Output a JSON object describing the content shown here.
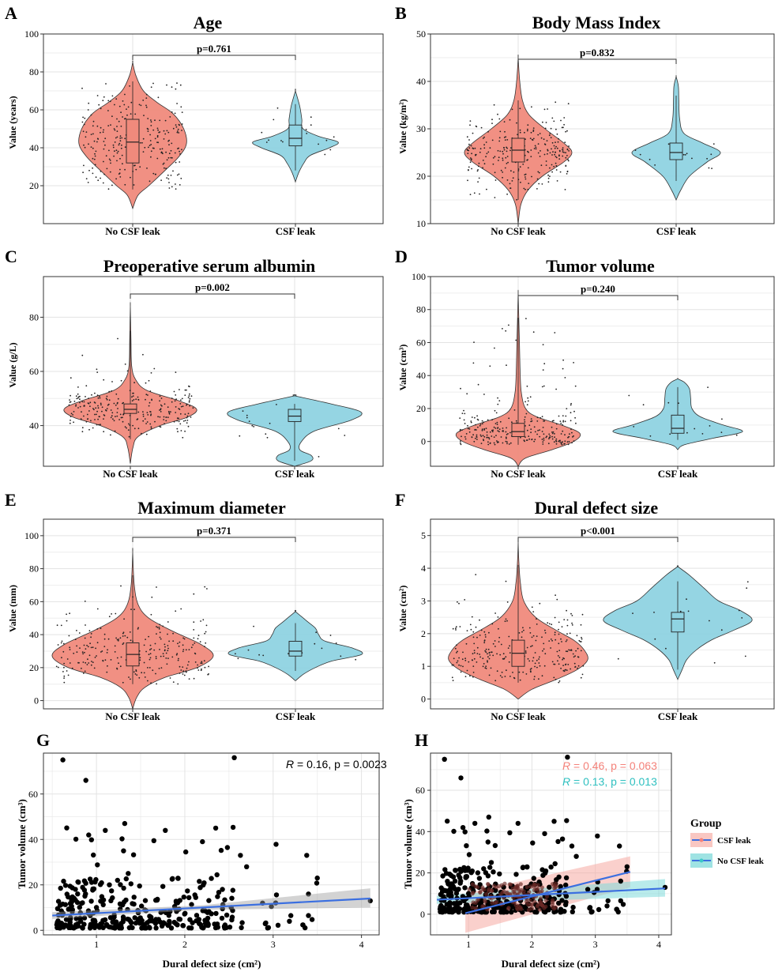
{
  "chart_data": [
    {
      "id": "A",
      "type": "violin",
      "panel_label": "A",
      "title": "Age",
      "ylabel": "Value (years)",
      "ylim": [
        0,
        100
      ],
      "yticks": [
        20,
        40,
        60,
        80,
        100
      ],
      "categories": [
        "No CSF leak",
        "CSF leak"
      ],
      "pvalue": "p=0.761",
      "groups": [
        {
          "name": "No CSF leak",
          "color": "#f08a7c",
          "min": 8,
          "max": 85,
          "q1": 32,
          "median": 43,
          "q3": 55,
          "whisker_low": 18,
          "whisker_high": 75,
          "density": [
            [
              8,
              0
            ],
            [
              15,
              0.1
            ],
            [
              20,
              0.3
            ],
            [
              28,
              0.6
            ],
            [
              35,
              0.85
            ],
            [
              42,
              1.0
            ],
            [
              50,
              0.95
            ],
            [
              58,
              0.75
            ],
            [
              64,
              0.45
            ],
            [
              70,
              0.2
            ],
            [
              78,
              0.06
            ],
            [
              85,
              0
            ]
          ]
        },
        {
          "name": "CSF leak",
          "color": "#8fd3e2",
          "min": 22,
          "max": 70,
          "q1": 41,
          "median": 45,
          "q3": 52,
          "whisker_low": 28,
          "whisker_high": 63,
          "density": [
            [
              22,
              0
            ],
            [
              27,
              0.08
            ],
            [
              32,
              0.2
            ],
            [
              36,
              0.35
            ],
            [
              40,
              0.8
            ],
            [
              43,
              1.0
            ],
            [
              46,
              0.55
            ],
            [
              50,
              0.18
            ],
            [
              55,
              0.15
            ],
            [
              62,
              0.1
            ],
            [
              70,
              0
            ]
          ]
        }
      ]
    },
    {
      "id": "B",
      "type": "violin",
      "panel_label": "B",
      "title": "Body Mass Index",
      "ylabel": "Value (kg/m²)",
      "ylim": [
        10,
        50
      ],
      "yticks": [
        10,
        20,
        30,
        40,
        50
      ],
      "categories": [
        "No CSF leak",
        "CSF leak"
      ],
      "pvalue": "p=0.832",
      "groups": [
        {
          "name": "No CSF leak",
          "color": "#f08a7c",
          "min": 10,
          "max": 45,
          "q1": 23,
          "median": 25.5,
          "q3": 28,
          "whisker_low": 15,
          "whisker_high": 36,
          "density": [
            [
              10,
              0
            ],
            [
              14,
              0.05
            ],
            [
              17,
              0.18
            ],
            [
              20,
              0.45
            ],
            [
              23,
              0.85
            ],
            [
              25,
              1.0
            ],
            [
              27,
              0.85
            ],
            [
              30,
              0.5
            ],
            [
              33,
              0.2
            ],
            [
              36,
              0.08
            ],
            [
              40,
              0.03
            ],
            [
              45,
              0
            ]
          ]
        },
        {
          "name": "CSF leak",
          "color": "#8fd3e2",
          "min": 15,
          "max": 41,
          "q1": 23.5,
          "median": 25,
          "q3": 27,
          "whisker_low": 19,
          "whisker_high": 37,
          "density": [
            [
              15,
              0
            ],
            [
              17,
              0.1
            ],
            [
              20,
              0.3
            ],
            [
              23,
              0.7
            ],
            [
              25,
              1.0
            ],
            [
              27,
              0.6
            ],
            [
              29,
              0.18
            ],
            [
              32,
              0.08
            ],
            [
              36,
              0.06
            ],
            [
              39,
              0.05
            ],
            [
              41,
              0
            ]
          ]
        }
      ]
    },
    {
      "id": "C",
      "type": "violin",
      "panel_label": "C",
      "title": "Preoperative serum albumin",
      "ylabel": "Value (g/L)",
      "ylim": [
        25,
        95
      ],
      "yticks": [
        40,
        60,
        80
      ],
      "categories": [
        "No CSF leak",
        "CSF leak"
      ],
      "pvalue": "p=0.002",
      "groups": [
        {
          "name": "No CSF leak",
          "color": "#f08a7c",
          "min": 26,
          "max": 84,
          "q1": 44.5,
          "median": 46,
          "q3": 48,
          "whisker_low": 35,
          "whisker_high": 75,
          "density": [
            [
              26,
              0
            ],
            [
              32,
              0.04
            ],
            [
              36,
              0.12
            ],
            [
              40,
              0.45
            ],
            [
              43,
              0.85
            ],
            [
              46,
              1.0
            ],
            [
              49,
              0.75
            ],
            [
              53,
              0.25
            ],
            [
              57,
              0.08
            ],
            [
              62,
              0.02
            ],
            [
              72,
              0.01
            ],
            [
              84,
              0
            ]
          ]
        },
        {
          "name": "CSF leak",
          "color": "#8fd3e2",
          "min": 25,
          "max": 51,
          "q1": 41.5,
          "median": 43.5,
          "q3": 46,
          "whisker_low": 27,
          "whisker_high": 48,
          "density": [
            [
              25,
              0
            ],
            [
              27,
              0.25
            ],
            [
              29,
              0.25
            ],
            [
              31,
              0.08
            ],
            [
              34,
              0.1
            ],
            [
              38,
              0.3
            ],
            [
              42,
              0.85
            ],
            [
              45,
              1.0
            ],
            [
              48,
              0.55
            ],
            [
              51,
              0
            ]
          ]
        }
      ]
    },
    {
      "id": "D",
      "type": "violin",
      "panel_label": "D",
      "title": "Tumor volume",
      "ylabel": "Value (cm³)",
      "ylim": [
        -15,
        100
      ],
      "yticks": [
        0,
        20,
        40,
        60,
        80,
        100
      ],
      "categories": [
        "No CSF leak",
        "CSF leak"
      ],
      "pvalue": "p=0.240",
      "groups": [
        {
          "name": "No CSF leak",
          "color": "#f08a7c",
          "min": -15,
          "max": 90,
          "q1": 3,
          "median": 6,
          "q3": 11,
          "whisker_low": -2,
          "whisker_high": 75,
          "density": [
            [
              -15,
              0
            ],
            [
              -10,
              0.12
            ],
            [
              -5,
              0.55
            ],
            [
              0,
              0.9
            ],
            [
              5,
              1.0
            ],
            [
              10,
              0.7
            ],
            [
              15,
              0.3
            ],
            [
              20,
              0.12
            ],
            [
              30,
              0.05
            ],
            [
              45,
              0.03
            ],
            [
              60,
              0.02
            ],
            [
              75,
              0.01
            ],
            [
              90,
              0
            ]
          ]
        },
        {
          "name": "CSF leak",
          "color": "#8fd3e2",
          "min": -5,
          "max": 38,
          "q1": 5,
          "median": 8,
          "q3": 16,
          "whisker_low": 1,
          "whisker_high": 33,
          "density": [
            [
              -5,
              0
            ],
            [
              -2,
              0.1
            ],
            [
              2,
              0.55
            ],
            [
              6,
              1.0
            ],
            [
              10,
              0.7
            ],
            [
              15,
              0.35
            ],
            [
              20,
              0.22
            ],
            [
              26,
              0.2
            ],
            [
              32,
              0.18
            ],
            [
              36,
              0.1
            ],
            [
              38,
              0
            ]
          ]
        }
      ]
    },
    {
      "id": "E",
      "type": "violin",
      "panel_label": "E",
      "title": "Maximum diameter",
      "ylabel": "Value (mm)",
      "ylim": [
        -5,
        110
      ],
      "yticks": [
        0,
        20,
        40,
        60,
        80,
        100
      ],
      "categories": [
        "No CSF leak",
        "CSF leak"
      ],
      "pvalue": "p=0.371",
      "groups": [
        {
          "name": "No CSF leak",
          "color": "#f08a7c",
          "min": -5,
          "max": 90,
          "q1": 21,
          "median": 28,
          "q3": 35,
          "whisker_low": 10,
          "whisker_high": 76,
          "density": [
            [
              -5,
              0
            ],
            [
              2,
              0.05
            ],
            [
              8,
              0.15
            ],
            [
              14,
              0.4
            ],
            [
              20,
              0.8
            ],
            [
              27,
              1.0
            ],
            [
              34,
              0.85
            ],
            [
              42,
              0.5
            ],
            [
              50,
              0.2
            ],
            [
              58,
              0.07
            ],
            [
              70,
              0.02
            ],
            [
              90,
              0
            ]
          ]
        },
        {
          "name": "CSF leak",
          "color": "#8fd3e2",
          "min": 12,
          "max": 54,
          "q1": 27,
          "median": 30,
          "q3": 36,
          "whisker_low": 18,
          "whisker_high": 47,
          "density": [
            [
              12,
              0
            ],
            [
              16,
              0.12
            ],
            [
              20,
              0.3
            ],
            [
              24,
              0.55
            ],
            [
              28,
              1.0
            ],
            [
              32,
              0.85
            ],
            [
              36,
              0.45
            ],
            [
              40,
              0.35
            ],
            [
              44,
              0.3
            ],
            [
              48,
              0.18
            ],
            [
              54,
              0
            ]
          ]
        }
      ]
    },
    {
      "id": "F",
      "type": "violin",
      "panel_label": "F",
      "title": "Dural defect size",
      "ylabel": "Value (cm²)",
      "ylim": [
        -0.3,
        5.5
      ],
      "yticks": [
        0,
        1,
        2,
        3,
        4,
        5
      ],
      "categories": [
        "No CSF leak",
        "CSF leak"
      ],
      "pvalue": "p<0.001",
      "groups": [
        {
          "name": "No CSF leak",
          "color": "#f08a7c",
          "min": 0,
          "max": 4.8,
          "q1": 1.0,
          "median": 1.4,
          "q3": 1.8,
          "whisker_low": 0.5,
          "whisker_high": 4.1,
          "density": [
            [
              0,
              0
            ],
            [
              0.3,
              0.2
            ],
            [
              0.6,
              0.55
            ],
            [
              0.9,
              0.85
            ],
            [
              1.2,
              1.0
            ],
            [
              1.5,
              0.95
            ],
            [
              1.8,
              0.8
            ],
            [
              2.1,
              0.55
            ],
            [
              2.5,
              0.25
            ],
            [
              3.0,
              0.08
            ],
            [
              3.6,
              0.03
            ],
            [
              4.2,
              0.01
            ],
            [
              4.8,
              0
            ]
          ]
        },
        {
          "name": "CSF leak",
          "color": "#8fd3e2",
          "min": 0.6,
          "max": 4.05,
          "q1": 2.05,
          "median": 2.45,
          "q3": 2.65,
          "whisker_low": 0.9,
          "whisker_high": 3.6,
          "density": [
            [
              0.6,
              0
            ],
            [
              0.9,
              0.06
            ],
            [
              1.2,
              0.12
            ],
            [
              1.5,
              0.25
            ],
            [
              1.8,
              0.45
            ],
            [
              2.1,
              0.75
            ],
            [
              2.4,
              1.0
            ],
            [
              2.7,
              0.85
            ],
            [
              3.0,
              0.55
            ],
            [
              3.4,
              0.35
            ],
            [
              3.8,
              0.15
            ],
            [
              4.05,
              0
            ]
          ]
        }
      ]
    },
    {
      "id": "G",
      "type": "scatter",
      "panel_label": "G",
      "xlabel": "Dural defect size (cm²)",
      "ylabel": "Tumor volume (cm³)",
      "xlim": [
        0.4,
        4.2
      ],
      "ylim": [
        -2,
        78
      ],
      "xticks": [
        1,
        2,
        3,
        4
      ],
      "yticks": [
        0,
        20,
        40,
        60
      ],
      "fit": {
        "x": [
          0.5,
          4.1
        ],
        "y": [
          6.5,
          14
        ],
        "band_low_end": 10,
        "band_high_end": 18.5
      },
      "annotation": {
        "R": "R",
        "text": " = 0.16, p = 0.0023"
      }
    },
    {
      "id": "H",
      "type": "scatter",
      "panel_label": "H",
      "xlabel": "Dural defect size (cm²)",
      "ylabel": "Tumor volume (cm³)",
      "xlim": [
        0.4,
        4.2
      ],
      "ylim": [
        -10,
        78
      ],
      "xticks": [
        1,
        2,
        3,
        4
      ],
      "yticks": [
        0,
        20,
        40,
        60
      ],
      "series": [
        {
          "name": "CSF leak",
          "color": "#f4827a",
          "line_color": "#3b6fe0",
          "fit": {
            "x": [
              0.95,
              3.55
            ],
            "y": [
              0.5,
              20.5
            ]
          },
          "band": {
            "x": [
              0.95,
              3.55
            ],
            "low": [
              -9,
              13
            ],
            "high": [
              10,
              28
            ]
          },
          "annotation": {
            "R": "R",
            "text": " = 0.46, p = 0.063"
          }
        },
        {
          "name": "No CSF leak",
          "color": "#3cc8c8",
          "line_color": "#3b6fe0",
          "fit": {
            "x": [
              0.5,
              4.1
            ],
            "y": [
              7,
              12.5
            ]
          },
          "band": {
            "x": [
              0.5,
              4.1
            ],
            "low": [
              5,
              8.5
            ],
            "high": [
              9,
              17
            ]
          },
          "annotation": {
            "R": "R",
            "text": " = 0.13, p = 0.013"
          }
        }
      ],
      "legend": {
        "title": "Group",
        "placement": "right"
      }
    }
  ]
}
